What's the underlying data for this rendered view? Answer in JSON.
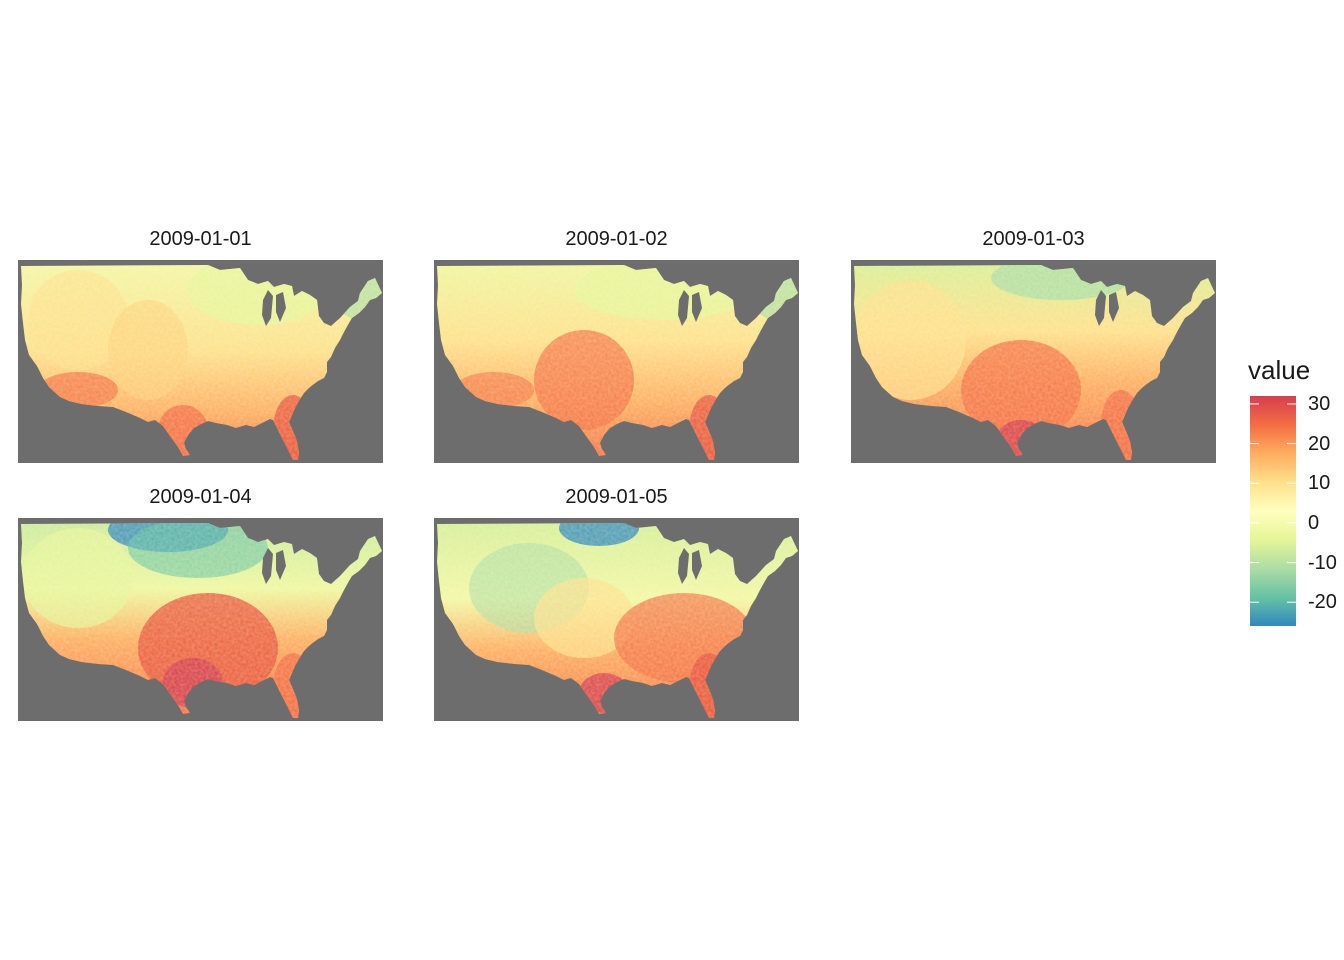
{
  "panels": [
    {
      "title": "2009-01-01"
    },
    {
      "title": "2009-01-02"
    },
    {
      "title": "2009-01-03"
    },
    {
      "title": "2009-01-04"
    },
    {
      "title": "2009-01-05"
    }
  ],
  "legend": {
    "title": "value",
    "ticks": [
      "30",
      "20",
      "10",
      "0",
      "-10",
      "-20"
    ],
    "tick_values": [
      30,
      20,
      10,
      0,
      -10,
      -20
    ],
    "range": [
      -26,
      32
    ],
    "colors": [
      "#d53e4f",
      "#f46d43",
      "#fdae61",
      "#fee08b",
      "#ffffbf",
      "#e6f598",
      "#abdda4",
      "#66c2a5",
      "#3288bd"
    ]
  },
  "colors": {
    "ocean": "#6d6d6d",
    "land_base": "#fde38e"
  }
}
